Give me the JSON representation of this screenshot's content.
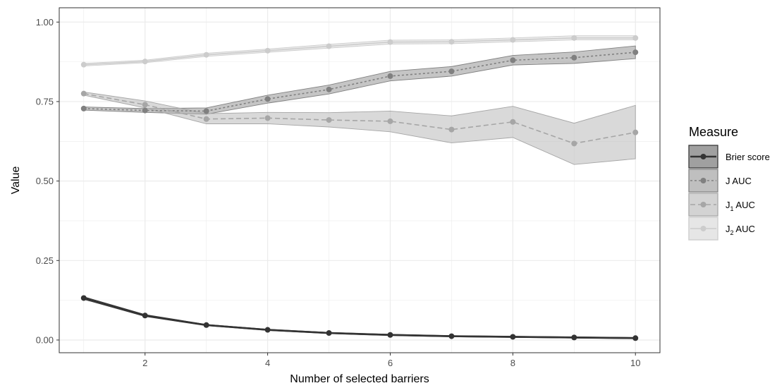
{
  "chart_data": {
    "type": "line",
    "title": "",
    "xlabel": "Number of selected barriers",
    "ylabel": "Value",
    "xlim": [
      0.6,
      10.4
    ],
    "ylim": [
      -0.04,
      1.045
    ],
    "x_ticks": [
      2,
      4,
      6,
      8,
      10
    ],
    "y_ticks": [
      0.0,
      0.25,
      0.5,
      0.75,
      1.0
    ],
    "y_tick_labels": [
      "0.00",
      "0.25",
      "0.50",
      "0.75",
      "1.00"
    ],
    "grid": true,
    "legend": {
      "title": "Measure",
      "placement": "right",
      "entries": [
        {
          "label": "Brier score",
          "sub": "",
          "suffix": ""
        },
        {
          "label": "J AUC",
          "sub": "",
          "suffix": ""
        },
        {
          "label": "J",
          "sub": "1",
          "suffix": " AUC"
        },
        {
          "label": "J",
          "sub": "2",
          "suffix": " AUC"
        }
      ]
    },
    "x": [
      1,
      2,
      3,
      4,
      5,
      6,
      7,
      8,
      9,
      10
    ],
    "series": [
      {
        "name": "Brier score",
        "color": "#333333",
        "fill": "#4d4d4d",
        "dash": "",
        "width": 2.5,
        "values": [
          0.132,
          0.077,
          0.047,
          0.032,
          0.022,
          0.016,
          0.012,
          0.01,
          0.008,
          0.006
        ],
        "lower": [
          0.128,
          0.074,
          0.045,
          0.03,
          0.02,
          0.014,
          0.01,
          0.008,
          0.006,
          0.004
        ],
        "upper": [
          0.136,
          0.08,
          0.049,
          0.034,
          0.024,
          0.018,
          0.014,
          0.012,
          0.01,
          0.008
        ]
      },
      {
        "name": "J AUC",
        "color": "#808080",
        "fill": "#8c8c8c",
        "dash": "3,3",
        "width": 1.6,
        "values": [
          0.728,
          0.722,
          0.72,
          0.758,
          0.788,
          0.83,
          0.845,
          0.88,
          0.888,
          0.905
        ],
        "lower": [
          0.723,
          0.716,
          0.71,
          0.745,
          0.774,
          0.815,
          0.83,
          0.865,
          0.87,
          0.885
        ],
        "upper": [
          0.733,
          0.728,
          0.73,
          0.77,
          0.802,
          0.845,
          0.86,
          0.895,
          0.906,
          0.925
        ]
      },
      {
        "name": "J1 AUC",
        "color": "#a6a6a6",
        "fill": "#b3b3b3",
        "dash": "7,4",
        "width": 1.6,
        "values": [
          0.775,
          0.74,
          0.695,
          0.698,
          0.692,
          0.688,
          0.662,
          0.686,
          0.618,
          0.653
        ],
        "lower": [
          0.77,
          0.73,
          0.68,
          0.68,
          0.67,
          0.655,
          0.62,
          0.637,
          0.552,
          0.57
        ],
        "upper": [
          0.78,
          0.752,
          0.712,
          0.716,
          0.715,
          0.72,
          0.705,
          0.735,
          0.682,
          0.738
        ]
      },
      {
        "name": "J2 AUC",
        "color": "#cccccc",
        "fill": "#d9d9d9",
        "dash": "",
        "width": 1.6,
        "values": [
          0.866,
          0.876,
          0.897,
          0.91,
          0.924,
          0.937,
          0.938,
          0.944,
          0.95,
          0.95
        ],
        "lower": [
          0.862,
          0.872,
          0.892,
          0.905,
          0.918,
          0.931,
          0.932,
          0.938,
          0.944,
          0.944
        ],
        "upper": [
          0.87,
          0.88,
          0.902,
          0.915,
          0.93,
          0.943,
          0.944,
          0.95,
          0.957,
          0.957
        ]
      }
    ]
  }
}
